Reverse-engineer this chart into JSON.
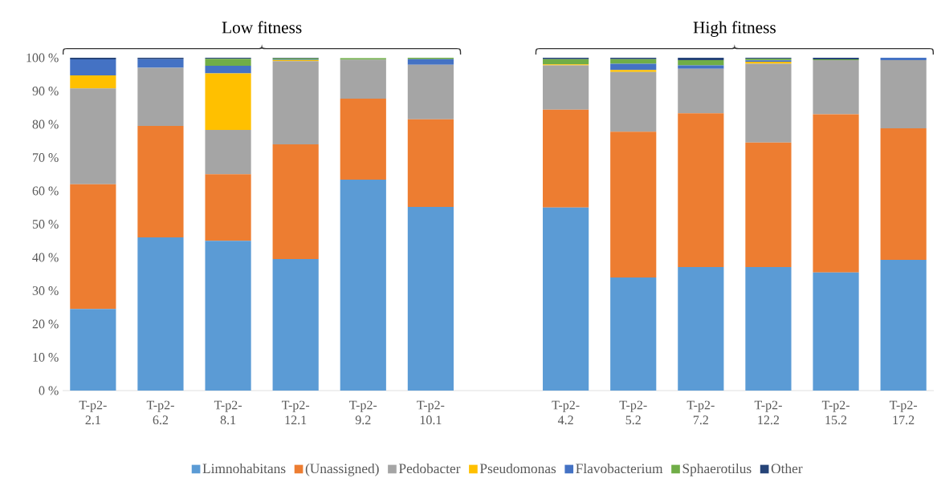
{
  "chart_data": {
    "type": "bar",
    "stacked": true,
    "legend": "bottom",
    "annotations": [
      "Low fitness",
      "High fitness"
    ],
    "categories": [
      "T-p2-2.1",
      "T-p2-6.2",
      "T-p2-8.1",
      "T-p2-12.1",
      "T-p2-9.2",
      "T-p2-10.1",
      null,
      "T-p2-4.2",
      "T-p2-5.2",
      "T-p2-7.2",
      "T-p2-12.2",
      "T-p2-15.2",
      "T-p2-17.2"
    ],
    "ylim": [
      0,
      100
    ],
    "yticks": [
      {
        "value": 0,
        "label": "0 %"
      },
      {
        "value": 10,
        "label": "10 %"
      },
      {
        "value": 20,
        "label": "20 %"
      },
      {
        "value": 30,
        "label": "30 %"
      },
      {
        "value": 40,
        "label": "40 %"
      },
      {
        "value": 50,
        "label": "50 %"
      },
      {
        "value": 60,
        "label": "60 %"
      },
      {
        "value": 70,
        "label": "70 %"
      },
      {
        "value": 80,
        "label": "80 %"
      },
      {
        "value": 90,
        "label": "90 %"
      },
      {
        "value": 100,
        "label": "100 %"
      }
    ],
    "series": [
      {
        "name": "Limnohabitans",
        "color": "#5b9bd5",
        "values": [
          24.5,
          46,
          45,
          39.5,
          63.4,
          55.2,
          null,
          55,
          34,
          37.1,
          37.1,
          35.5,
          39.3
        ]
      },
      {
        "name": "(Unassigned)",
        "color": "#ed7d31",
        "values": [
          37.5,
          33.5,
          20,
          34.5,
          24.3,
          26.3,
          null,
          29.4,
          43.8,
          46.2,
          37.4,
          47.5,
          39.5
        ]
      },
      {
        "name": "Pedobacter",
        "color": "#a5a5a5",
        "values": [
          28.8,
          17.5,
          13.3,
          25,
          11.7,
          16.4,
          null,
          13.3,
          17.9,
          13.4,
          23.7,
          16.3,
          20.5
        ]
      },
      {
        "name": "Pseudomonas",
        "color": "#ffc000",
        "values": [
          3.9,
          0,
          17,
          0.3,
          0,
          0,
          null,
          0.3,
          0.6,
          0,
          0.6,
          0,
          0
        ]
      },
      {
        "name": "Flavobacterium",
        "color": "#4472c4",
        "values": [
          4.8,
          2.6,
          2.3,
          0.1,
          0,
          1.7,
          null,
          0,
          1.9,
          1,
          0.4,
          0,
          0.7
        ]
      },
      {
        "name": "Sphaerotilus",
        "color": "#70ad47",
        "values": [
          0,
          0,
          2.1,
          0.4,
          0.5,
          0.4,
          null,
          1.6,
          1.4,
          1.6,
          0.5,
          0.2,
          0
        ]
      },
      {
        "name": "Other",
        "color": "#264478",
        "values": [
          0.5,
          0.4,
          0.3,
          0.2,
          null,
          0,
          null,
          0.4,
          0.4,
          0.7,
          0.3,
          0.5,
          0
        ]
      }
    ]
  }
}
